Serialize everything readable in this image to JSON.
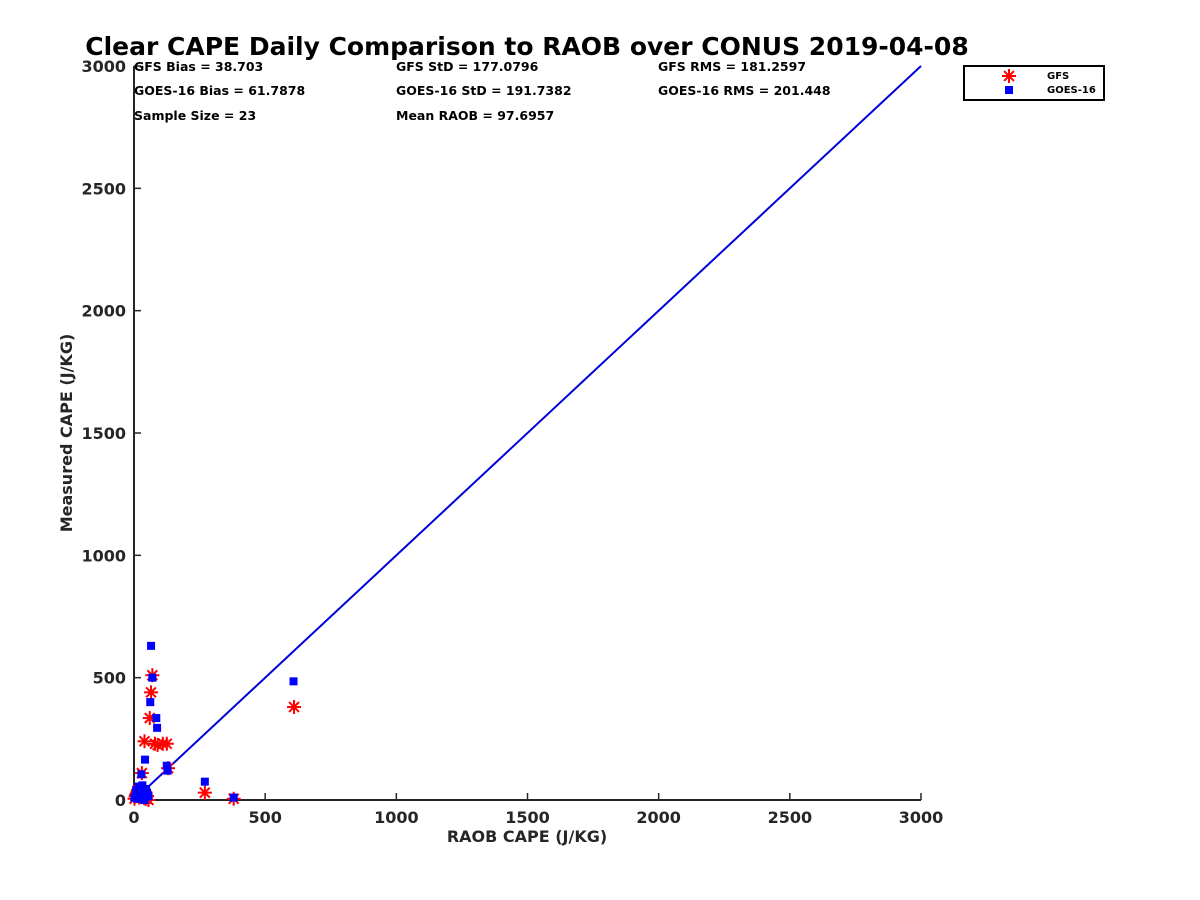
{
  "chart_data": {
    "type": "scatter",
    "title": "Clear CAPE Daily Comparison to RAOB over CONUS 2019-04-08",
    "xlabel": "RAOB CAPE (J/KG)",
    "ylabel": "Measured CAPE (J/KG)",
    "xlim": [
      0,
      3000
    ],
    "ylim": [
      0,
      3000
    ],
    "x_ticks": [
      "0",
      "500",
      "1000",
      "1500",
      "2000",
      "2500",
      "3000"
    ],
    "y_ticks": [
      "0",
      "500",
      "1000",
      "1500",
      "2000",
      "2500",
      "3000"
    ],
    "grid": false,
    "legend_position": "top-right (outside plot)",
    "stats": [
      "GFS Bias = 38.703",
      "GFS StD = 177.0796",
      "GFS RMS = 181.2597",
      "GOES-16 Bias = 61.7878",
      "GOES-16 StD = 191.7382",
      "GOES-16 RMS = 201.448",
      "Sample Size = 23",
      "Mean RAOB = 97.6957"
    ],
    "reference_line": {
      "x": [
        0,
        3000
      ],
      "y": [
        0,
        3000
      ],
      "color": "#0000dd"
    },
    "series": [
      {
        "name": "GFS",
        "marker": "asterisk",
        "color": "#ff0000",
        "points": [
          [
            2,
            5
          ],
          [
            6,
            15
          ],
          [
            10,
            25
          ],
          [
            15,
            40
          ],
          [
            20,
            10
          ],
          [
            25,
            20
          ],
          [
            30,
            110
          ],
          [
            35,
            35
          ],
          [
            40,
            240
          ],
          [
            45,
            5
          ],
          [
            50,
            15
          ],
          [
            60,
            335
          ],
          [
            65,
            440
          ],
          [
            70,
            510
          ],
          [
            80,
            230
          ],
          [
            90,
            225
          ],
          [
            110,
            230
          ],
          [
            125,
            230
          ],
          [
            130,
            130
          ],
          [
            270,
            30
          ],
          [
            380,
            5
          ],
          [
            610,
            380
          ],
          [
            55,
            0
          ]
        ]
      },
      {
        "name": "GOES-16",
        "marker": "square",
        "color": "#0000ff",
        "points": [
          [
            2,
            10
          ],
          [
            8,
            40
          ],
          [
            12,
            5
          ],
          [
            18,
            55
          ],
          [
            22,
            25
          ],
          [
            28,
            105
          ],
          [
            32,
            60
          ],
          [
            36,
            20
          ],
          [
            42,
            165
          ],
          [
            46,
            45
          ],
          [
            50,
            30
          ],
          [
            62,
            400
          ],
          [
            65,
            630
          ],
          [
            70,
            500
          ],
          [
            85,
            335
          ],
          [
            88,
            295
          ],
          [
            125,
            140
          ],
          [
            128,
            120
          ],
          [
            270,
            75
          ],
          [
            380,
            10
          ],
          [
            608,
            485
          ],
          [
            40,
            0
          ],
          [
            55,
            15
          ]
        ]
      }
    ]
  }
}
